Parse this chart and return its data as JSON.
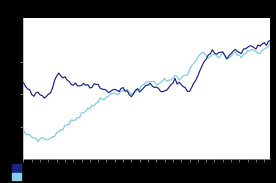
{
  "background_color": "#000000",
  "plot_bg_color": "#ffffff",
  "line1_color": "#1a237e",
  "line2_color": "#7ec8e3",
  "legend_color1": "#1a237e",
  "legend_color2": "#87ceeb",
  "line1": [
    0.62,
    0.6,
    0.58,
    0.57,
    0.55,
    0.54,
    0.55,
    0.56,
    0.55,
    0.54,
    0.53,
    0.54,
    0.55,
    0.57,
    0.6,
    0.64,
    0.67,
    0.68,
    0.67,
    0.66,
    0.65,
    0.64,
    0.63,
    0.62,
    0.61,
    0.62,
    0.61,
    0.6,
    0.61,
    0.62,
    0.61,
    0.6,
    0.59,
    0.6,
    0.61,
    0.62,
    0.61,
    0.6,
    0.59,
    0.58,
    0.57,
    0.56,
    0.57,
    0.58,
    0.59,
    0.58,
    0.57,
    0.58,
    0.59,
    0.58,
    0.57,
    0.55,
    0.54,
    0.55,
    0.57,
    0.58,
    0.57,
    0.58,
    0.59,
    0.6,
    0.61,
    0.62,
    0.61,
    0.6,
    0.59,
    0.58,
    0.57,
    0.56,
    0.57,
    0.58,
    0.59,
    0.6,
    0.62,
    0.64,
    0.63,
    0.62,
    0.61,
    0.6,
    0.59,
    0.58,
    0.57,
    0.59,
    0.61,
    0.64,
    0.67,
    0.7,
    0.72,
    0.75,
    0.77,
    0.79,
    0.8,
    0.82,
    0.81,
    0.8,
    0.81,
    0.82,
    0.81,
    0.79,
    0.77,
    0.79,
    0.81,
    0.82,
    0.83,
    0.82,
    0.81,
    0.8,
    0.82,
    0.83,
    0.84,
    0.85,
    0.86,
    0.84,
    0.83,
    0.84,
    0.85,
    0.86,
    0.87,
    0.86,
    0.87,
    0.88
  ],
  "line2": [
    0.32,
    0.31,
    0.3,
    0.3,
    0.29,
    0.28,
    0.28,
    0.27,
    0.27,
    0.28,
    0.28,
    0.27,
    0.27,
    0.28,
    0.29,
    0.3,
    0.31,
    0.32,
    0.33,
    0.34,
    0.35,
    0.36,
    0.37,
    0.38,
    0.39,
    0.4,
    0.41,
    0.42,
    0.43,
    0.44,
    0.45,
    0.46,
    0.47,
    0.48,
    0.49,
    0.5,
    0.51,
    0.52,
    0.51,
    0.52,
    0.53,
    0.54,
    0.55,
    0.56,
    0.57,
    0.56,
    0.55,
    0.56,
    0.57,
    0.58,
    0.57,
    0.56,
    0.55,
    0.56,
    0.57,
    0.58,
    0.59,
    0.6,
    0.61,
    0.62,
    0.63,
    0.64,
    0.63,
    0.62,
    0.61,
    0.62,
    0.63,
    0.64,
    0.65,
    0.64,
    0.63,
    0.64,
    0.65,
    0.66,
    0.65,
    0.64,
    0.65,
    0.66,
    0.67,
    0.68,
    0.7,
    0.72,
    0.74,
    0.76,
    0.78,
    0.8,
    0.81,
    0.8,
    0.78,
    0.77,
    0.78,
    0.79,
    0.8,
    0.79,
    0.78,
    0.79,
    0.8,
    0.78,
    0.77,
    0.78,
    0.79,
    0.8,
    0.81,
    0.8,
    0.79,
    0.78,
    0.79,
    0.8,
    0.81,
    0.82,
    0.83,
    0.82,
    0.81,
    0.8,
    0.81,
    0.82,
    0.83,
    0.84,
    0.85,
    0.86
  ]
}
